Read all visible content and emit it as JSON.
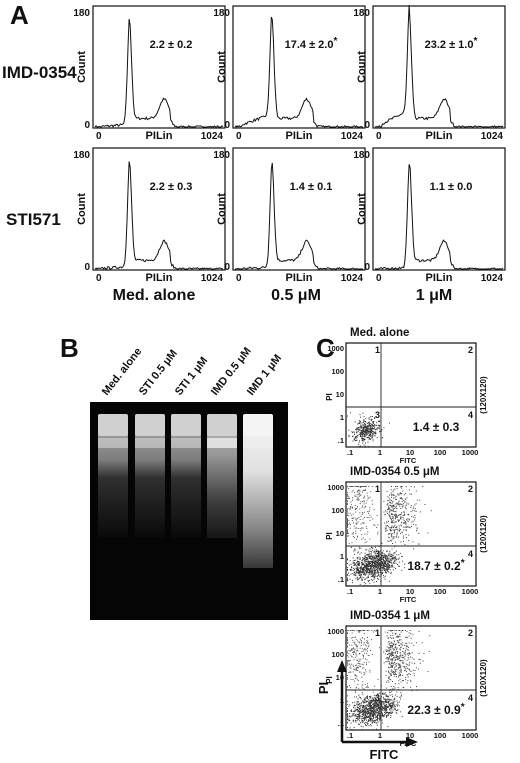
{
  "panel_a": {
    "letter": "A",
    "y_axis": {
      "label": "Count",
      "max": "180",
      "min": "0"
    },
    "x_axis": {
      "label": "PILin",
      "max": "1024",
      "min": "0"
    },
    "rows": [
      {
        "label": "IMD-0354",
        "stats": [
          "2.2 ± 0.2",
          "17.4 ± 2.0",
          "23.2 ± 1.0"
        ],
        "starred": [
          false,
          true,
          true
        ]
      },
      {
        "label": "STI571",
        "stats": [
          "2.2 ± 0.3",
          "1.4 ± 0.1",
          "1.1 ± 0.0"
        ],
        "starred": [
          false,
          false,
          false
        ]
      }
    ],
    "columns": [
      "Med. alone",
      "0.5 μM",
      "1 μM"
    ],
    "star": "*"
  },
  "panel_b": {
    "letter": "B",
    "lanes": [
      "Med. alone",
      "STI 0.5 μM",
      "STI 1 μM",
      "IMD 0.5 μM",
      "IMD 1 μM"
    ]
  },
  "panel_c": {
    "letter": "C",
    "plots": [
      {
        "title": "Med. alone",
        "value": "1.4 ± 0.3",
        "starred": false
      },
      {
        "title": "IMD-0354 0.5 μM",
        "value": "18.7 ± 0.2",
        "starred": true
      },
      {
        "title": "IMD-0354 1 μM",
        "value": "22.3 ± 0.9",
        "starred": true
      }
    ],
    "y_ticks": [
      "1000",
      "100",
      "10",
      "1",
      ".1"
    ],
    "x_ticks": [
      ".1",
      "1",
      "10",
      "100",
      "1000"
    ],
    "y_label": "PI",
    "x_label": "FITC",
    "quadrants": [
      "1",
      "2",
      "3",
      "4"
    ],
    "side_label": "(120X120)",
    "arrow_y_label": "PI",
    "arrow_x_label": "FITC",
    "star": "*"
  }
}
